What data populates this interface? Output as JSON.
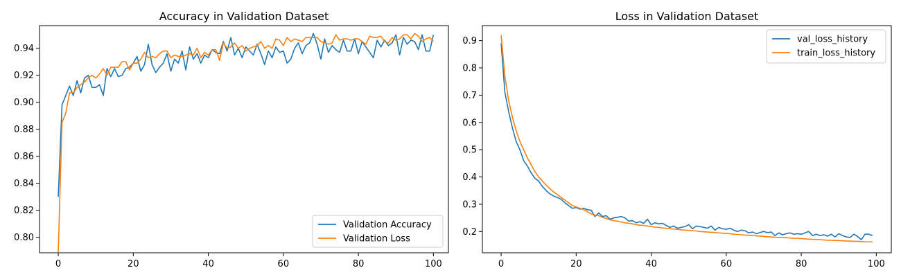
{
  "chart_data": [
    {
      "type": "line",
      "title": "Accuracy in Validation Dataset",
      "xlabel": "",
      "ylabel": "",
      "xlim": [
        -5,
        104
      ],
      "ylim": [
        0.7885,
        0.9568
      ],
      "xticks": [
        0,
        20,
        40,
        60,
        80,
        100
      ],
      "yticks": [
        0.8,
        0.82,
        0.84,
        0.86,
        0.88,
        0.9,
        0.92,
        0.94
      ],
      "ytick_labels": [
        "0.80",
        "0.82",
        "0.84",
        "0.86",
        "0.88",
        "0.90",
        "0.92",
        "0.94"
      ],
      "xtick_labels": [
        "0",
        "20",
        "40",
        "60",
        "80",
        "100"
      ],
      "legend_position": "lower-right",
      "grid": false,
      "series": [
        {
          "name": "Validation Accuracy",
          "color": "#1f77b4",
          "values": [
            0.83,
            0.898,
            0.905,
            0.912,
            0.905,
            0.916,
            0.907,
            0.918,
            0.92,
            0.911,
            0.911,
            0.913,
            0.905,
            0.925,
            0.919,
            0.925,
            0.919,
            0.92,
            0.925,
            0.926,
            0.929,
            0.934,
            0.923,
            0.928,
            0.943,
            0.928,
            0.922,
            0.926,
            0.929,
            0.936,
            0.923,
            0.932,
            0.929,
            0.938,
            0.924,
            0.941,
            0.932,
            0.936,
            0.929,
            0.935,
            0.933,
            0.939,
            0.937,
            0.936,
            0.945,
            0.938,
            0.948,
            0.935,
            0.94,
            0.933,
            0.941,
            0.938,
            0.935,
            0.943,
            0.936,
            0.928,
            0.938,
            0.933,
            0.941,
            0.937,
            0.938,
            0.929,
            0.932,
            0.94,
            0.944,
            0.936,
            0.942,
            0.944,
            0.951,
            0.943,
            0.932,
            0.947,
            0.937,
            0.942,
            0.939,
            0.937,
            0.946,
            0.938,
            0.938,
            0.947,
            0.936,
            0.945,
            0.941,
            0.937,
            0.933,
            0.946,
            0.941,
            0.946,
            0.942,
            0.944,
            0.95,
            0.935,
            0.948,
            0.943,
            0.946,
            0.945,
            0.939,
            0.95,
            0.938,
            0.938,
            0.95
          ]
        },
        {
          "name": "Validation Loss",
          "color": "#ff7f0e",
          "values": [
            0.789,
            0.885,
            0.892,
            0.907,
            0.907,
            0.911,
            0.913,
            0.915,
            0.918,
            0.92,
            0.918,
            0.921,
            0.925,
            0.92,
            0.926,
            0.926,
            0.926,
            0.93,
            0.93,
            0.924,
            0.929,
            0.929,
            0.932,
            0.937,
            0.933,
            0.934,
            0.933,
            0.936,
            0.938,
            0.938,
            0.933,
            0.935,
            0.934,
            0.934,
            0.935,
            0.936,
            0.935,
            0.94,
            0.933,
            0.937,
            0.935,
            0.939,
            0.939,
            0.931,
            0.944,
            0.94,
            0.941,
            0.944,
            0.94,
            0.942,
            0.938,
            0.94,
            0.941,
            0.942,
            0.945,
            0.94,
            0.942,
            0.94,
            0.947,
            0.946,
            0.942,
            0.948,
            0.945,
            0.947,
            0.946,
            0.945,
            0.948,
            0.948,
            0.948,
            0.948,
            0.945,
            0.944,
            0.943,
            0.944,
            0.95,
            0.946,
            0.947,
            0.947,
            0.946,
            0.947,
            0.947,
            0.945,
            0.943,
            0.949,
            0.948,
            0.948,
            0.949,
            0.945,
            0.944,
            0.948,
            0.946,
            0.947,
            0.95,
            0.95,
            0.947,
            0.951,
            0.949,
            0.945,
            0.947,
            0.948,
            0.945
          ]
        }
      ]
    },
    {
      "type": "line",
      "title": "Loss in Validation Dataset",
      "xlabel": "",
      "ylabel": "",
      "xlim": [
        -5,
        104
      ],
      "ylim": [
        0.122,
        0.955
      ],
      "xticks": [
        0,
        20,
        40,
        60,
        80,
        100
      ],
      "yticks": [
        0.2,
        0.3,
        0.4,
        0.5,
        0.6,
        0.7,
        0.8,
        0.9
      ],
      "ytick_labels": [
        "0.2",
        "0.3",
        "0.4",
        "0.5",
        "0.6",
        "0.7",
        "0.8",
        "0.9"
      ],
      "xtick_labels": [
        "0",
        "20",
        "40",
        "60",
        "80",
        "100"
      ],
      "legend_position": "upper-right",
      "grid": false,
      "series": [
        {
          "name": "val_loss_history",
          "color": "#1f77b4",
          "values": [
            0.89,
            0.71,
            0.64,
            0.58,
            0.53,
            0.5,
            0.46,
            0.44,
            0.415,
            0.395,
            0.385,
            0.365,
            0.35,
            0.338,
            0.33,
            0.325,
            0.318,
            0.305,
            0.295,
            0.285,
            0.288,
            0.282,
            0.285,
            0.28,
            0.278,
            0.255,
            0.268,
            0.255,
            0.258,
            0.245,
            0.25,
            0.252,
            0.255,
            0.25,
            0.238,
            0.24,
            0.232,
            0.236,
            0.23,
            0.245,
            0.225,
            0.232,
            0.228,
            0.23,
            0.222,
            0.215,
            0.22,
            0.212,
            0.215,
            0.218,
            0.225,
            0.21,
            0.22,
            0.218,
            0.215,
            0.212,
            0.22,
            0.205,
            0.215,
            0.21,
            0.208,
            0.212,
            0.205,
            0.2,
            0.205,
            0.203,
            0.195,
            0.198,
            0.192,
            0.196,
            0.2,
            0.196,
            0.198,
            0.185,
            0.195,
            0.188,
            0.192,
            0.195,
            0.19,
            0.192,
            0.19,
            0.195,
            0.2,
            0.185,
            0.19,
            0.185,
            0.188,
            0.183,
            0.19,
            0.18,
            0.192,
            0.185,
            0.18,
            0.178,
            0.19,
            0.182,
            0.17,
            0.19,
            0.19,
            0.185
          ]
        },
        {
          "name": "train_loss_history",
          "color": "#ff7f0e",
          "values": [
            0.92,
            0.77,
            0.68,
            0.62,
            0.57,
            0.53,
            0.5,
            0.47,
            0.445,
            0.42,
            0.4,
            0.385,
            0.37,
            0.357,
            0.345,
            0.335,
            0.325,
            0.315,
            0.305,
            0.295,
            0.29,
            0.285,
            0.28,
            0.272,
            0.265,
            0.26,
            0.258,
            0.252,
            0.248,
            0.243,
            0.24,
            0.238,
            0.235,
            0.232,
            0.23,
            0.228,
            0.225,
            0.223,
            0.222,
            0.22,
            0.218,
            0.216,
            0.215,
            0.213,
            0.212,
            0.21,
            0.209,
            0.208,
            0.206,
            0.205,
            0.204,
            0.203,
            0.202,
            0.2,
            0.199,
            0.198,
            0.197,
            0.196,
            0.195,
            0.194,
            0.193,
            0.192,
            0.19,
            0.189,
            0.188,
            0.187,
            0.186,
            0.185,
            0.184,
            0.183,
            0.182,
            0.181,
            0.18,
            0.179,
            0.178,
            0.178,
            0.177,
            0.176,
            0.175,
            0.175,
            0.174,
            0.173,
            0.172,
            0.171,
            0.171,
            0.17,
            0.169,
            0.168,
            0.168,
            0.167,
            0.167,
            0.166,
            0.165,
            0.165,
            0.164,
            0.164,
            0.163,
            0.162,
            0.162,
            0.162
          ]
        }
      ]
    }
  ]
}
